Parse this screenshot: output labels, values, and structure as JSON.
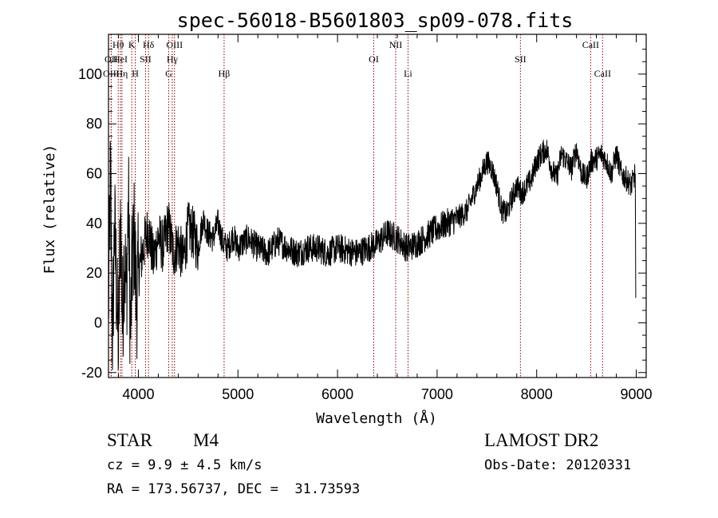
{
  "chart_data": {
    "type": "line",
    "title": "spec-56018-B5601803_sp09-078.fits",
    "xlabel": "Wavelength (Å)",
    "ylabel": "Flux (relative)",
    "xlim": [
      3700,
      9100
    ],
    "ylim": [
      -22,
      116
    ],
    "x_ticks": [
      4000,
      5000,
      6000,
      7000,
      8000,
      9000
    ],
    "y_ticks": [
      -20,
      0,
      20,
      40,
      60,
      80,
      100
    ],
    "grid": false,
    "legend": "none",
    "line_color": "#000000",
    "marker_color": "#8b0000",
    "series": [
      {
        "x": [
          3700,
          3720,
          3740,
          3760,
          3780,
          3800,
          3820,
          3840,
          3860,
          3880,
          3900,
          3920,
          3940,
          3960,
          3980,
          4000,
          4050,
          4100,
          4150,
          4200,
          4250,
          4300,
          4350,
          4400,
          4450,
          4500,
          4550,
          4600,
          4650,
          4700,
          4750,
          4800,
          4850,
          4900,
          4950,
          5000,
          5100,
          5200,
          5300,
          5400,
          5500,
          5600,
          5700,
          5800,
          5900,
          6000,
          6100,
          6200,
          6300,
          6400,
          6500,
          6600,
          6700,
          6800,
          6900,
          7000,
          7100,
          7200,
          7300,
          7400,
          7450,
          7500,
          7550,
          7600,
          7650,
          7700,
          7750,
          7800,
          7850,
          7900,
          7950,
          8000,
          8050,
          8100,
          8150,
          8200,
          8250,
          8300,
          8350,
          8400,
          8450,
          8500,
          8550,
          8600,
          8650,
          8700,
          8750,
          8800,
          8850,
          8900,
          8950,
          8990
        ],
        "y": [
          5,
          60,
          -10,
          40,
          15,
          -12,
          45,
          0,
          30,
          10,
          50,
          -5,
          25,
          35,
          8,
          20,
          30,
          38,
          25,
          35,
          30,
          40,
          28,
          32,
          25,
          38,
          36,
          30,
          42,
          36,
          34,
          40,
          32,
          30,
          35,
          30,
          34,
          30,
          28,
          33,
          30,
          28,
          30,
          30,
          28,
          30,
          29,
          28,
          30,
          32,
          36,
          34,
          30,
          32,
          35,
          38,
          40,
          42,
          45,
          55,
          60,
          65,
          62,
          55,
          45,
          44,
          50,
          55,
          52,
          55,
          58,
          65,
          68,
          70,
          62,
          58,
          68,
          65,
          62,
          70,
          60,
          58,
          65,
          66,
          68,
          65,
          60,
          68,
          60,
          58,
          55,
          60
        ]
      }
    ],
    "spectral_lines": [
      {
        "label": "Hθ",
        "x": 3798,
        "row": 1
      },
      {
        "label": "OII",
        "x": 3727,
        "row": 2
      },
      {
        "label": "HeI",
        "x": 3820,
        "row": 2
      },
      {
        "label": "OIII",
        "x": 3727,
        "row": 3
      },
      {
        "label": "Hη",
        "x": 3835,
        "row": 3
      },
      {
        "label": "K",
        "x": 3934,
        "row": 1
      },
      {
        "label": "SII",
        "x": 4072,
        "row": 2
      },
      {
        "label": "H",
        "x": 3969,
        "row": 3
      },
      {
        "label": "Hδ",
        "x": 4102,
        "row": 1
      },
      {
        "label": "OIII",
        "x": 4363,
        "row": 1
      },
      {
        "label": "Hγ",
        "x": 4340,
        "row": 2
      },
      {
        "label": "G",
        "x": 4305,
        "row": 3
      },
      {
        "label": "Hβ",
        "x": 4861,
        "row": 3
      },
      {
        "label": "OI",
        "x": 6364,
        "row": 2
      },
      {
        "label": "NII",
        "x": 6584,
        "row": 1
      },
      {
        "label": "Li",
        "x": 6708,
        "row": 3
      },
      {
        "label": "SII",
        "x": 7837,
        "row": 2
      },
      {
        "label": "CaII",
        "x": 8542,
        "row": 1
      },
      {
        "label": "CaII",
        "x": 8662,
        "row": 3
      }
    ]
  },
  "info": {
    "object_class": "STAR",
    "subclass": "M4",
    "survey": "LAMOST DR2",
    "redshift": "cz = 9.9 ± 4.5 km/s",
    "obs_date": "Obs-Date: 20120331",
    "coords": "RA = 173.56737, DEC =  31.73593"
  }
}
